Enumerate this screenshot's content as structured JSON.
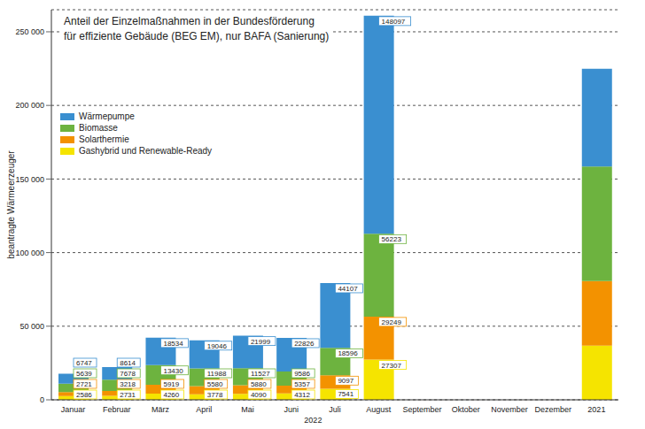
{
  "chart_data": {
    "type": "bar",
    "title": "Anteil der Einzelmaßnahmen in der Bundesförderung",
    "subtitle": "für effiziente Gebäude (BEG EM), nur BAFA (Sanierung)",
    "xlabel": "2022",
    "ylabel": "beantragte Wärmeerzeuger",
    "categories": [
      "Januar",
      "Februar",
      "März",
      "April",
      "Mai",
      "Juni",
      "Juli",
      "August",
      "September",
      "Oktober",
      "November",
      "Dezember",
      "2021"
    ],
    "series": [
      {
        "name": "Wärmepumpe",
        "color": "#3a8fd0",
        "values": [
          6747,
          8614,
          18534,
          19046,
          21999,
          22826,
          44107,
          148097,
          null,
          null,
          null,
          null,
          66496
        ]
      },
      {
        "name": "Biomasse",
        "color": "#6db33f",
        "values": [
          5639,
          7678,
          13430,
          11988,
          11527,
          9586,
          18596,
          56223,
          null,
          null,
          null,
          null,
          77703
        ]
      },
      {
        "name": "Solarthermie",
        "color": "#f39200",
        "values": [
          2721,
          3218,
          5919,
          5580,
          5880,
          5357,
          9097,
          29249,
          null,
          null,
          null,
          null,
          43952
        ]
      },
      {
        "name": "Gashybrid und Renewable-Ready",
        "color": "#f5e400",
        "values": [
          2586,
          2731,
          4260,
          3778,
          4090,
          4312,
          7541,
          27307,
          null,
          null,
          null,
          null,
          36784
        ]
      }
    ],
    "ylim": [
      0,
      265000
    ],
    "yticks": [
      0,
      {
        "value": 50000,
        "label": "50 000"
      },
      {
        "value": 100000,
        "label": "100 000"
      },
      {
        "value": 150000,
        "label": "150 000"
      },
      {
        "value": 200000,
        "label": "200 000"
      },
      {
        "value": 250000,
        "label": "250 000"
      }
    ],
    "grid": true,
    "stacked": true,
    "data_labels": true,
    "legend": "upper left"
  }
}
